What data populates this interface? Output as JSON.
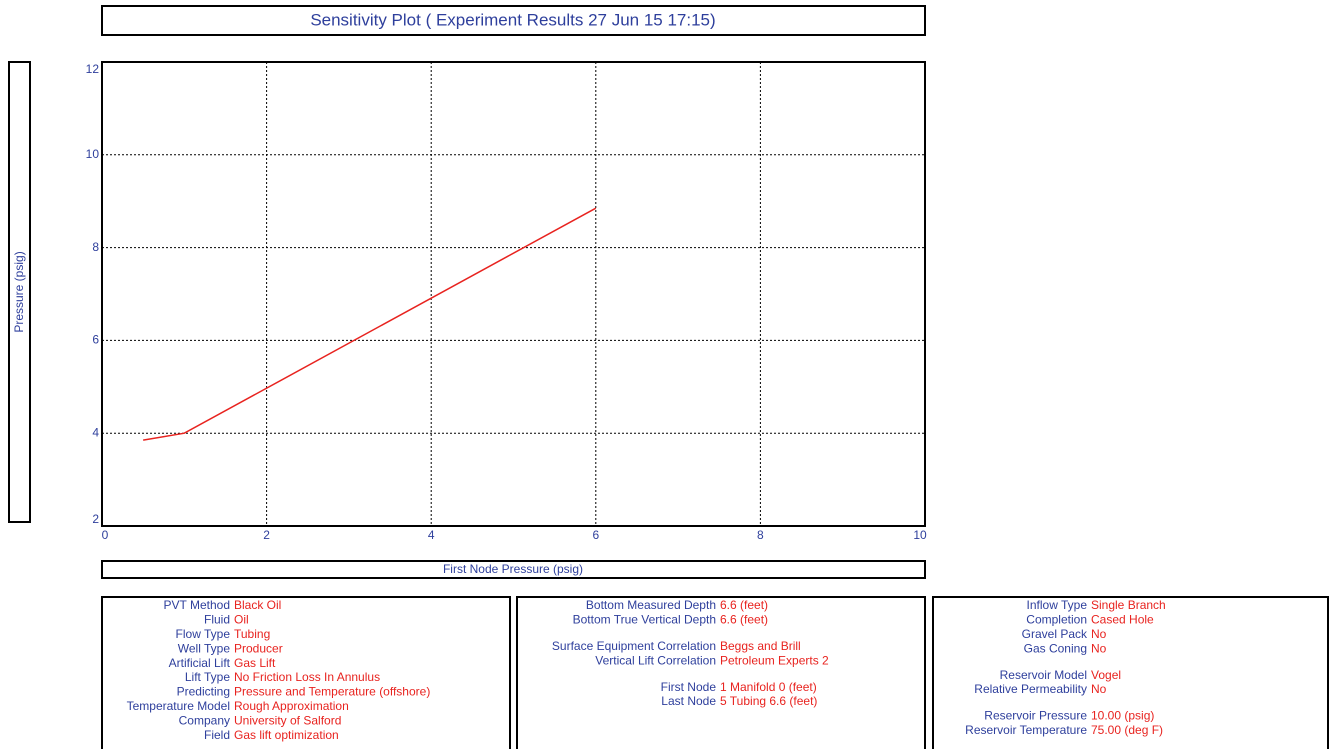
{
  "chart_data": {
    "type": "line",
    "title": "Sensitivity Plot ( Experiment Results  27 Jun 15  17:15)",
    "x_label": "First Node Pressure  (psig)",
    "y_label": "Pressure  (psig)",
    "x": [
      0.5,
      1,
      6
    ],
    "series": [
      {
        "color": "#e8231f",
        "values": [
          3.85,
          4.0,
          8.85
        ]
      }
    ],
    "xlim": [
      0,
      10
    ],
    "xticks": [
      0,
      2,
      4,
      6,
      8,
      10
    ],
    "ylim": [
      2,
      12
    ],
    "yticks": [
      2,
      4,
      6,
      8,
      10,
      12
    ],
    "grid": true
  },
  "info_panels": [
    {
      "groups": [
        [
          {
            "label": "PVT Method",
            "value": "Black Oil"
          },
          {
            "label": "Fluid",
            "value": "Oil"
          },
          {
            "label": "Flow Type",
            "value": "Tubing"
          },
          {
            "label": "Well Type",
            "value": "Producer"
          },
          {
            "label": "Artificial Lift",
            "value": "Gas Lift"
          },
          {
            "label": "Lift Type",
            "value": "No Friction Loss In Annulus"
          },
          {
            "label": "Predicting",
            "value": "Pressure and Temperature (offshore)"
          },
          {
            "label": "Temperature Model",
            "value": "Rough Approximation"
          },
          {
            "label": "Company",
            "value": "University of Salford"
          },
          {
            "label": "Field",
            "value": "Gas lift optimization"
          }
        ]
      ]
    },
    {
      "groups": [
        [
          {
            "label": "Bottom Measured Depth",
            "value": "6.6  (feet)"
          },
          {
            "label": "Bottom True Vertical Depth",
            "value": "6.6  (feet)"
          }
        ],
        [
          {
            "label": "Surface Equipment Correlation",
            "value": "Beggs and Brill"
          },
          {
            "label": "Vertical Lift Correlation",
            "value": "Petroleum Experts 2"
          }
        ],
        [
          {
            "label": "First Node",
            "value": "1 Manifold 0  (feet)"
          },
          {
            "label": "Last Node",
            "value": "5 Tubing 6.6  (feet)"
          }
        ]
      ]
    },
    {
      "groups": [
        [
          {
            "label": "Inflow Type",
            "value": "Single Branch"
          },
          {
            "label": "Completion",
            "value": "Cased Hole"
          },
          {
            "label": "Gravel Pack",
            "value": "No"
          },
          {
            "label": "Gas Coning",
            "value": "No"
          }
        ],
        [
          {
            "label": "Reservoir Model",
            "value": "Vogel"
          },
          {
            "label": "Relative Permeability",
            "value": "No"
          }
        ],
        [
          {
            "label": "Reservoir Pressure",
            "value": "10.00  (psig)"
          },
          {
            "label": "Reservoir Temperature",
            "value": "75.00  (deg F)"
          }
        ]
      ]
    }
  ]
}
